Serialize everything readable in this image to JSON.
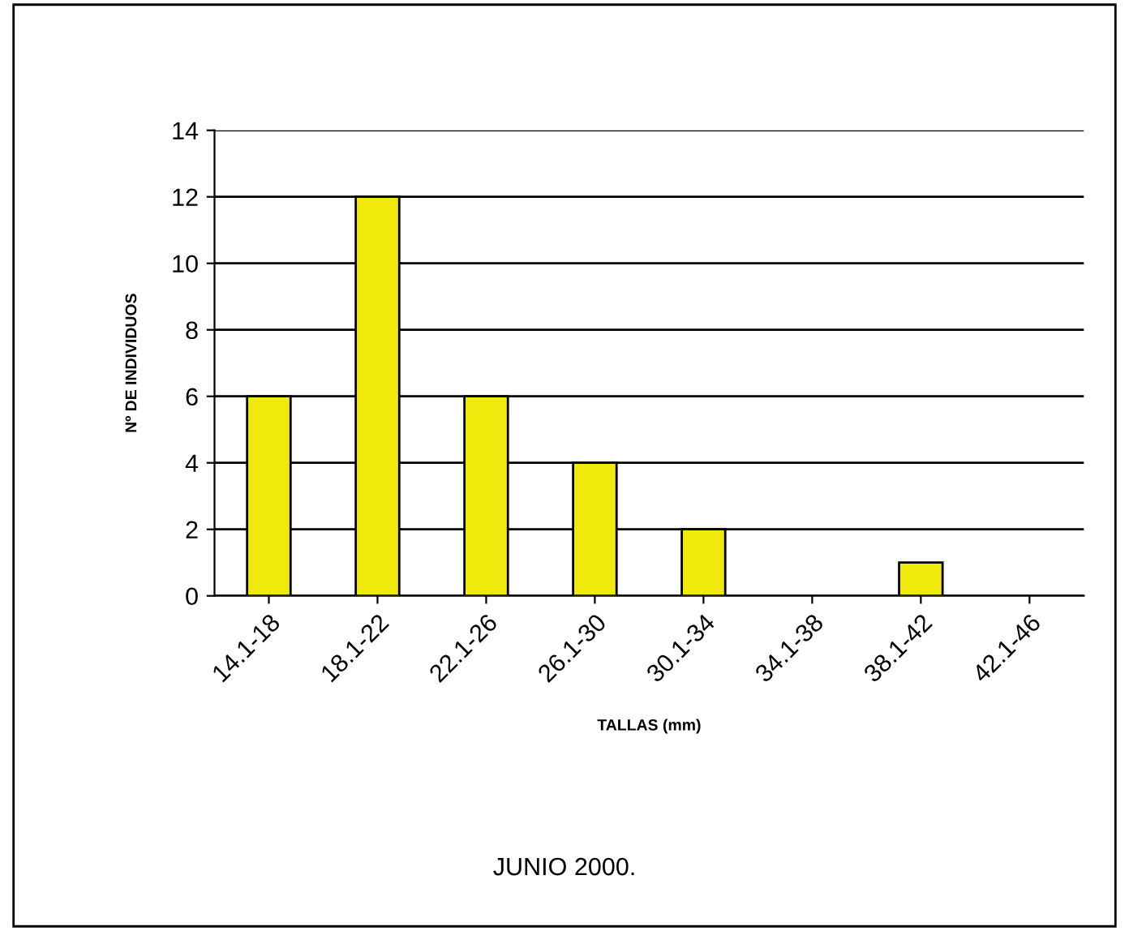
{
  "chart_data": {
    "type": "bar",
    "title": "JUNIO 2000.",
    "xlabel": "TALLAS (mm)",
    "ylabel": "Nº DE INDIVIDUOS",
    "categories": [
      "14.1-18",
      "18.1-22",
      "22.1-26",
      "26.1-30",
      "30.1-34",
      "34.1-38",
      "38.1-42",
      "42.1-46"
    ],
    "values": [
      6,
      12,
      6,
      4,
      2,
      0,
      1,
      0
    ],
    "color": "#f0e90c",
    "ylim": [
      0,
      14
    ],
    "yticks": [
      0,
      2,
      4,
      6,
      8,
      10,
      12,
      14
    ],
    "grid": "y",
    "legend": false
  }
}
